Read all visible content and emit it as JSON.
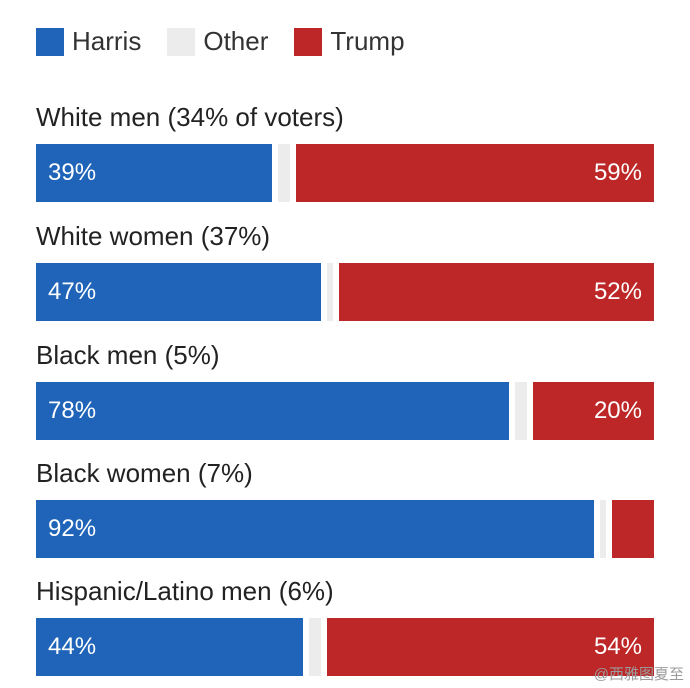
{
  "colors": {
    "harris": "#1f64b8",
    "other": "#ececec",
    "trump": "#bd2727"
  },
  "legend": [
    {
      "key": "harris",
      "label": "Harris"
    },
    {
      "key": "other",
      "label": "Other"
    },
    {
      "key": "trump",
      "label": "Trump"
    }
  ],
  "chart_data": {
    "type": "bar",
    "orientation": "horizontal",
    "stacked": true,
    "categories": [
      "White men (34% of voters)",
      "White women (37%)",
      "Black men (5%)",
      "Black women (7%)",
      "Hispanic/Latino men (6%)"
    ],
    "series": [
      {
        "name": "Harris",
        "values": [
          39,
          47,
          78,
          92,
          44
        ]
      },
      {
        "name": "Other",
        "values": [
          2,
          1,
          2,
          1,
          2
        ]
      },
      {
        "name": "Trump",
        "values": [
          59,
          52,
          20,
          7,
          54
        ]
      }
    ],
    "labels": {
      "harris": [
        "39%",
        "47%",
        "78%",
        "92%",
        "44%"
      ],
      "trump": [
        "59%",
        "52%",
        "20%",
        "",
        "54%"
      ]
    },
    "xlim": [
      0,
      100
    ],
    "legend_position": "top-left"
  },
  "watermark": "@西雅图夏至"
}
